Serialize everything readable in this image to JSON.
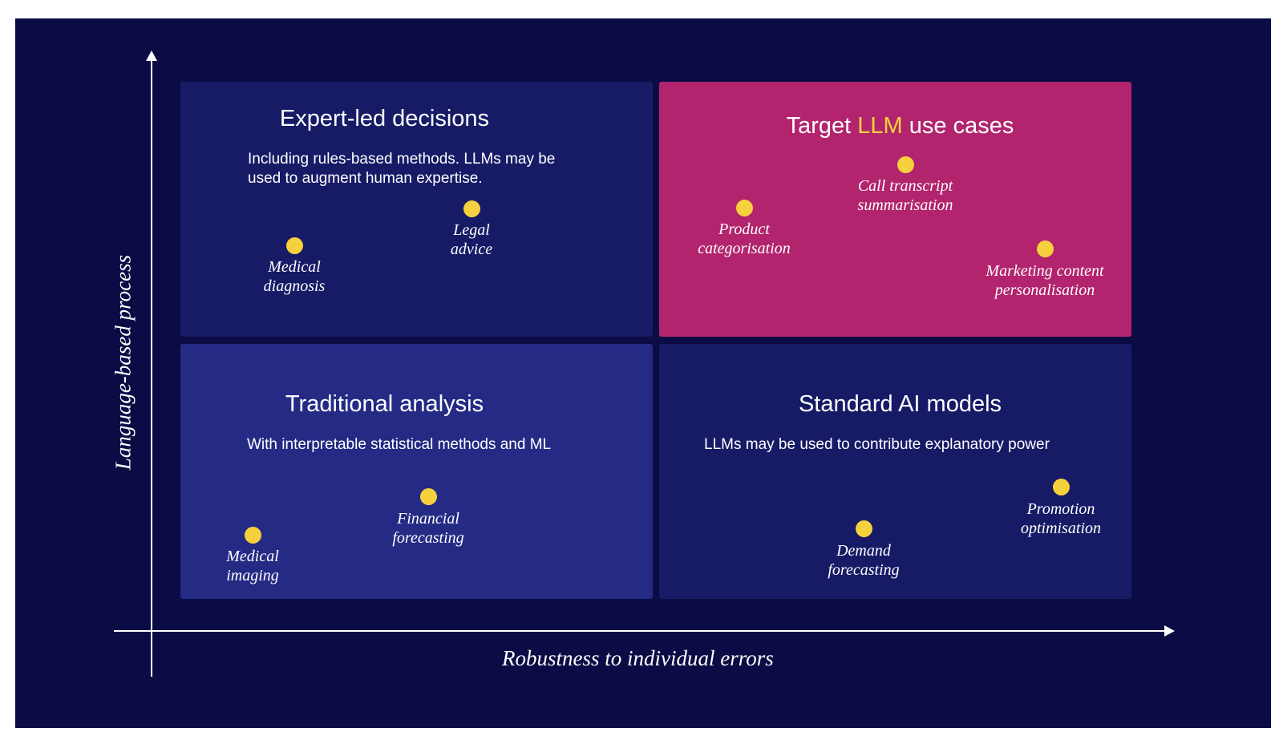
{
  "axes": {
    "x_label": "Robustness to individual errors",
    "y_label": "Language-based process"
  },
  "quadrants": {
    "top_left": {
      "title": "Expert-led decisions",
      "desc_line1": "Including rules-based methods. LLMs may be",
      "desc_line2": "used to augment human expertise.",
      "color": "#171b66",
      "points": [
        {
          "line1": "Legal",
          "line2": "advice"
        },
        {
          "line1": "Medical",
          "line2": "diagnosis"
        }
      ]
    },
    "top_right": {
      "title_pre": "Target ",
      "title_accent": "LLM",
      "title_post": " use cases",
      "color": "#b2246e",
      "accent_color": "#f7d13d",
      "points": [
        {
          "line1": "Call transcript",
          "line2": "summarisation"
        },
        {
          "line1": "Product",
          "line2": "categorisation"
        },
        {
          "line1": "Marketing content",
          "line2": "personalisation"
        }
      ]
    },
    "bottom_left": {
      "title": "Traditional analysis",
      "desc": "With interpretable statistical methods and ML",
      "color": "#252a85",
      "points": [
        {
          "line1": "Financial",
          "line2": "forecasting"
        },
        {
          "line1": "Medical",
          "line2": "imaging"
        }
      ]
    },
    "bottom_right": {
      "title": "Standard AI models",
      "desc": "LLMs may be used to contribute explanatory power",
      "color": "#171b66",
      "points": [
        {
          "line1": "Promotion",
          "line2": "optimisation"
        },
        {
          "line1": "Demand",
          "line2": "forecasting"
        }
      ]
    }
  },
  "colors": {
    "background": "#0b0c45",
    "dot": "#f7d13d"
  }
}
